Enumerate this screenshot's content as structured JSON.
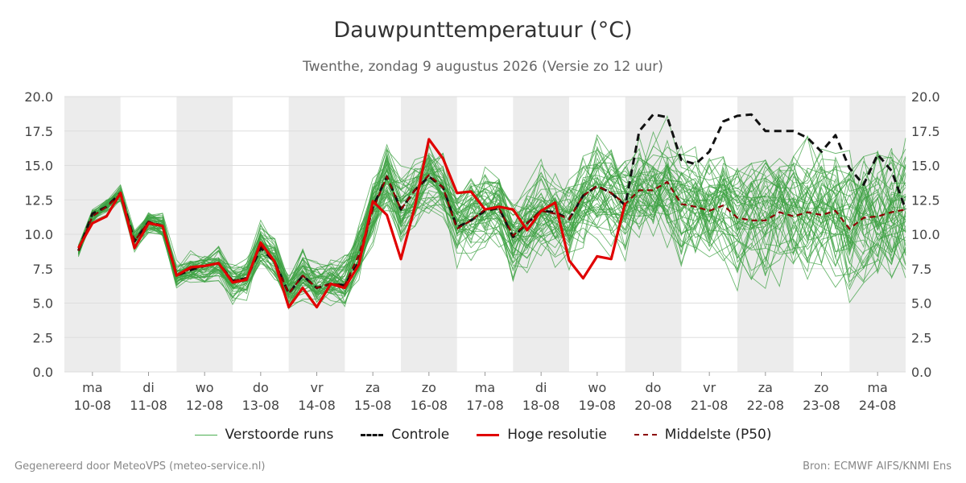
{
  "header": {
    "title": "Dauwpunttemperatuur (°C)",
    "subtitle": "Twenthe, zondag  9 augustus 2026 (Versie zo 12 uur)"
  },
  "footer": {
    "left": "Gegenereerd door MeteoVPS (meteo-service.nl)",
    "right": "Bron: ECMWF AIFS/KNMI Ens"
  },
  "legend": {
    "ensemble": "Verstoorde runs",
    "control": "Controle",
    "hres": "Hoge resolutie",
    "p50": "Middelste (P50)"
  },
  "colors": {
    "ensemble": "#3da143",
    "control": "#111111",
    "hres": "#e00000",
    "p50": "#8b0000",
    "weekend_band": "#ececec",
    "grid": "#dddddd"
  },
  "chart_data": {
    "type": "line",
    "title": "Dauwpunttemperatuur (°C)",
    "ylim": [
      0,
      20
    ],
    "y_ticks": [
      "0.0",
      "2.5",
      "5.0",
      "7.5",
      "10.0",
      "12.5",
      "15.0",
      "17.5",
      "20.0"
    ],
    "x_range_days": [
      9.5,
      24.5
    ],
    "x_unit": "dag van augustus 2026 (6-uurs stappen)",
    "x_tick_labels": [
      {
        "day": 10,
        "weekday": "ma",
        "date": "10-08"
      },
      {
        "day": 11,
        "weekday": "di",
        "date": "11-08"
      },
      {
        "day": 12,
        "weekday": "wo",
        "date": "12-08"
      },
      {
        "day": 13,
        "weekday": "do",
        "date": "13-08"
      },
      {
        "day": 14,
        "weekday": "vr",
        "date": "14-08"
      },
      {
        "day": 15,
        "weekday": "za",
        "date": "15-08"
      },
      {
        "day": 16,
        "weekday": "zo",
        "date": "16-08"
      },
      {
        "day": 17,
        "weekday": "ma",
        "date": "17-08"
      },
      {
        "day": 18,
        "weekday": "di",
        "date": "18-08"
      },
      {
        "day": 19,
        "weekday": "wo",
        "date": "19-08"
      },
      {
        "day": 20,
        "weekday": "do",
        "date": "20-08"
      },
      {
        "day": 21,
        "weekday": "vr",
        "date": "21-08"
      },
      {
        "day": 22,
        "weekday": "za",
        "date": "22-08"
      },
      {
        "day": 23,
        "weekday": "zo",
        "date": "23-08"
      },
      {
        "day": 24,
        "weekday": "ma",
        "date": "24-08"
      }
    ],
    "shaded_days": [
      10,
      12,
      14,
      16,
      18,
      20,
      22,
      24
    ],
    "grid": true,
    "legend_position": "bottom",
    "series": [
      {
        "name": "Controle",
        "style": "dashed",
        "x": [
          9.75,
          10.0,
          10.25,
          10.5,
          10.75,
          11.0,
          11.25,
          11.5,
          11.75,
          12.0,
          12.25,
          12.5,
          12.75,
          13.0,
          13.25,
          13.5,
          13.75,
          14.0,
          14.25,
          14.5,
          14.75,
          15.0,
          15.25,
          15.5,
          15.75,
          16.0,
          16.25,
          16.5,
          16.75,
          17.0,
          17.25,
          17.5,
          17.75,
          18.0,
          18.25,
          18.5,
          18.75,
          19.0,
          19.25,
          19.5,
          19.75,
          20.0,
          20.25,
          20.5,
          20.75,
          21.0,
          21.25,
          21.5,
          21.75,
          22.0,
          22.25,
          22.5,
          22.75,
          23.0,
          23.25,
          23.5,
          23.75,
          24.0,
          24.25,
          24.5
        ],
        "y": [
          8.8,
          11.5,
          12.0,
          13.0,
          9.5,
          10.9,
          10.6,
          7.0,
          7.4,
          7.7,
          7.9,
          6.6,
          6.8,
          9.0,
          8.0,
          5.7,
          7.0,
          6.1,
          6.4,
          6.3,
          8.0,
          12.0,
          14.2,
          11.8,
          13.2,
          14.2,
          13.4,
          10.5,
          11.0,
          11.7,
          11.9,
          9.8,
          10.8,
          11.7,
          11.6,
          11.1,
          12.8,
          13.5,
          13.0,
          12.1,
          17.5,
          18.7,
          18.5,
          15.4,
          15.1,
          16.0,
          18.2,
          18.6,
          18.7,
          17.5,
          17.5,
          17.5,
          17.0,
          16.0,
          17.2,
          14.8,
          13.6,
          15.8,
          14.6,
          11.8
        ]
      },
      {
        "name": "Hoge resolutie",
        "style": "solid",
        "x": [
          9.75,
          10.0,
          10.25,
          10.5,
          10.75,
          11.0,
          11.25,
          11.5,
          11.75,
          12.0,
          12.25,
          12.5,
          12.75,
          13.0,
          13.25,
          13.5,
          13.75,
          14.0,
          14.25,
          14.5,
          14.75,
          15.0,
          15.25,
          15.5,
          15.75,
          16.0,
          16.25,
          16.5,
          16.75,
          17.0,
          17.25,
          17.5,
          17.75,
          18.0,
          18.25,
          18.5,
          18.75,
          19.0,
          19.25,
          19.5
        ],
        "y": [
          9.0,
          10.8,
          11.3,
          13.0,
          9.0,
          10.8,
          10.6,
          7.0,
          7.6,
          7.7,
          7.9,
          6.5,
          6.7,
          9.4,
          8.0,
          4.7,
          6.1,
          4.7,
          6.4,
          6.1,
          7.8,
          12.4,
          11.4,
          8.2,
          12.0,
          16.9,
          15.5,
          13.0,
          13.1,
          11.8,
          12.0,
          11.8,
          10.3,
          11.7,
          12.3,
          8.1,
          6.8,
          8.4,
          8.2,
          12.3
        ]
      },
      {
        "name": "Middelste (P50)",
        "style": "dashed",
        "x": [
          9.75,
          10.0,
          10.25,
          10.5,
          10.75,
          11.0,
          11.25,
          11.5,
          11.75,
          12.0,
          12.25,
          12.5,
          12.75,
          13.0,
          13.25,
          13.5,
          13.75,
          14.0,
          14.25,
          14.5,
          14.75,
          15.0,
          15.25,
          15.5,
          15.75,
          16.0,
          16.25,
          16.5,
          16.75,
          17.0,
          17.25,
          17.5,
          17.75,
          18.0,
          18.25,
          18.5,
          18.75,
          19.0,
          19.25,
          19.5,
          19.75,
          20.0,
          20.25,
          20.5,
          20.75,
          21.0,
          21.25,
          21.5,
          21.75,
          22.0,
          22.25,
          22.5,
          22.75,
          23.0,
          23.25,
          23.5,
          23.75,
          24.0,
          24.25,
          24.5
        ],
        "y": [
          8.8,
          11.3,
          12.0,
          12.9,
          9.5,
          10.9,
          10.6,
          7.0,
          7.5,
          7.7,
          7.9,
          6.6,
          6.8,
          9.2,
          8.0,
          5.7,
          7.0,
          6.1,
          6.4,
          6.3,
          8.5,
          11.8,
          14.2,
          11.8,
          13.2,
          14.3,
          13.4,
          10.4,
          11.0,
          11.8,
          11.9,
          9.9,
          10.8,
          11.7,
          11.5,
          11.1,
          12.8,
          13.5,
          13.0,
          12.2,
          13.2,
          13.2,
          13.8,
          12.2,
          12.0,
          11.7,
          12.1,
          11.2,
          11.0,
          11.0,
          11.6,
          11.3,
          11.6,
          11.4,
          11.7,
          10.4,
          11.2,
          11.3,
          11.6,
          11.8
        ]
      }
    ]
  }
}
